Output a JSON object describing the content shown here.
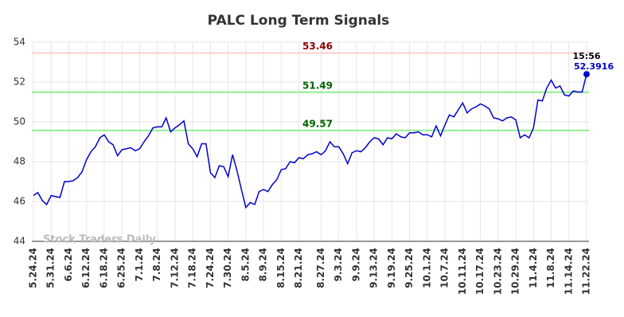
{
  "chart_data": {
    "type": "line",
    "title": "PALC Long Term Signals",
    "watermark": "Stock Traders Daily",
    "last_time": "15:56",
    "categories": [
      "5.24.24",
      null,
      null,
      null,
      "5.31.24",
      null,
      null,
      null,
      "6.6.24",
      null,
      null,
      null,
      "6.12.24",
      null,
      null,
      null,
      "6.18.24",
      null,
      null,
      null,
      "6.25.24",
      null,
      null,
      null,
      "7.1.24",
      null,
      null,
      null,
      "7.8.24",
      null,
      null,
      null,
      "7.12.24",
      null,
      null,
      null,
      "7.18.24",
      null,
      null,
      null,
      "7.24.24",
      null,
      null,
      null,
      "7.30.24",
      null,
      null,
      null,
      "8.5.24",
      null,
      null,
      null,
      "8.9.24",
      null,
      null,
      null,
      "8.15.24",
      null,
      null,
      null,
      "8.21.24",
      null,
      null,
      null,
      null,
      "8.27.24",
      null,
      null,
      null,
      "9.3.24",
      null,
      null,
      null,
      "9.9.24",
      null,
      null,
      null,
      "9.13.24",
      null,
      null,
      null,
      "9.19.24",
      null,
      null,
      null,
      "9.25.24",
      null,
      null,
      null,
      "10.1.24",
      null,
      null,
      null,
      "10.7.24",
      null,
      null,
      null,
      "10.11.24",
      null,
      null,
      null,
      "10.17.24",
      null,
      null,
      null,
      "10.23.24",
      null,
      null,
      null,
      "10.29.24",
      null,
      null,
      null,
      "11.4.24",
      null,
      null,
      null,
      "11.8.24",
      null,
      null,
      null,
      "11.14.24",
      null,
      null,
      null,
      "11.22.24"
    ],
    "series": [
      {
        "color": "#0000cc",
        "values": [
          46.3,
          46.45,
          46.05,
          45.85,
          46.3,
          46.25,
          46.2,
          47.0,
          47.0,
          47.05,
          47.2,
          47.5,
          48.1,
          48.5,
          48.75,
          49.2,
          49.35,
          49.0,
          48.85,
          48.3,
          48.6,
          48.65,
          48.7,
          48.55,
          48.65,
          49.0,
          49.3,
          49.7,
          49.75,
          49.75,
          50.2,
          49.5,
          49.7,
          49.85,
          50.05,
          48.9,
          48.65,
          48.25,
          48.9,
          48.9,
          47.45,
          47.2,
          47.8,
          47.75,
          47.25,
          48.35,
          47.55,
          46.6,
          45.7,
          45.95,
          45.85,
          46.5,
          46.6,
          46.5,
          46.85,
          47.1,
          47.6,
          47.65,
          48.0,
          47.95,
          48.2,
          48.15,
          48.35,
          48.4,
          48.5,
          48.35,
          48.55,
          49.0,
          48.75,
          48.75,
          48.4,
          47.9,
          48.45,
          48.55,
          48.5,
          48.7,
          49.0,
          49.2,
          49.15,
          48.85,
          49.2,
          49.15,
          49.4,
          49.25,
          49.2,
          49.45,
          49.45,
          49.5,
          49.35,
          49.35,
          49.25,
          49.8,
          49.3,
          49.85,
          50.35,
          50.25,
          50.6,
          50.95,
          50.45,
          50.65,
          50.75,
          50.9,
          50.8,
          50.65,
          50.2,
          50.15,
          50.05,
          50.2,
          50.25,
          50.1,
          49.2,
          49.35,
          49.2,
          49.7,
          51.1,
          51.05,
          51.7,
          52.1,
          51.7,
          51.8,
          51.35,
          51.3,
          51.55,
          51.5,
          51.5,
          52.3916
        ]
      }
    ],
    "hlines": [
      {
        "value": 53.46,
        "color": "#ffcccc",
        "label_color": "#8b0000"
      },
      {
        "value": 51.49,
        "color": "#90ee90",
        "label_color": "#006400"
      },
      {
        "value": 49.57,
        "color": "#90ee90",
        "label_color": "#006400"
      }
    ],
    "ylim": [
      44,
      54
    ],
    "yticks": [
      44,
      46,
      48,
      50,
      52,
      54
    ],
    "grid": true
  }
}
